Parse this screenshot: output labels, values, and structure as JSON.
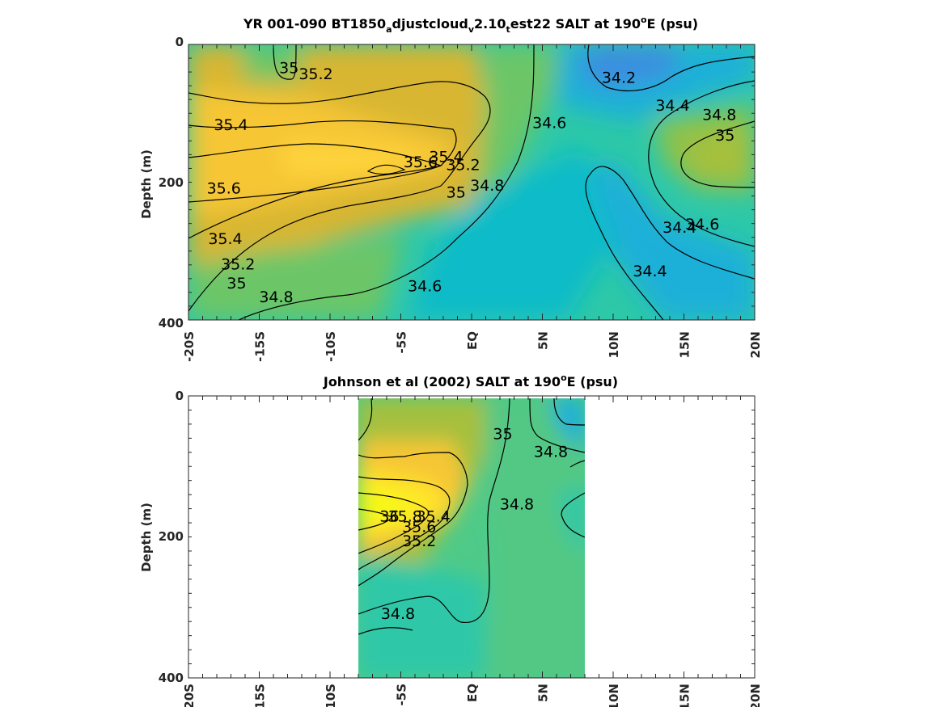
{
  "chart_data": [
    {
      "type": "heatmap",
      "title_parts": [
        "YR 001-090 BT1850",
        "a",
        "djustcloud",
        "v",
        "2.10",
        "t",
        "est22 SALT at 190",
        "o",
        "E (psu)"
      ],
      "ylabel": "Depth (m)",
      "ylim": [
        400,
        0
      ],
      "yticks": [
        "0",
        "200",
        "400"
      ],
      "xticks": [
        "-20S",
        "-15S",
        "-10S",
        "-5S",
        "EQ",
        "5N",
        "10N",
        "15N",
        "20N"
      ],
      "xlim": [
        -20,
        20
      ],
      "colormap": [
        "#3b8fe0",
        "#1fb0d8",
        "#08bcc8",
        "#2dc8a8",
        "#6cc668",
        "#a6c03c",
        "#d8b632",
        "#f6c634",
        "#ffe42a",
        "#f7f814"
      ],
      "color_range": [
        34.0,
        36.2
      ],
      "contour_labels": [
        {
          "text": "35",
          "x": -12.9,
          "y": 35
        },
        {
          "text": "35.2",
          "x": -11.0,
          "y": 44
        },
        {
          "text": "35.4",
          "x": -17.0,
          "y": 118
        },
        {
          "text": "35.6",
          "x": -17.5,
          "y": 210
        },
        {
          "text": "35.4",
          "x": -17.4,
          "y": 283
        },
        {
          "text": "35.2",
          "x": -16.5,
          "y": 320
        },
        {
          "text": "35",
          "x": -16.6,
          "y": 348
        },
        {
          "text": "34.8",
          "x": -13.8,
          "y": 368
        },
        {
          "text": "35.6",
          "x": -3.6,
          "y": 172
        },
        {
          "text": "35.4",
          "x": -1.8,
          "y": 164
        },
        {
          "text": "35.2",
          "x": -0.6,
          "y": 176
        },
        {
          "text": "35",
          "x": -1.1,
          "y": 216
        },
        {
          "text": "34.8",
          "x": 1.1,
          "y": 206
        },
        {
          "text": "34.6",
          "x": -3.3,
          "y": 352
        },
        {
          "text": "34.6",
          "x": 5.5,
          "y": 115
        },
        {
          "text": "34.2",
          "x": 10.4,
          "y": 49
        },
        {
          "text": "34.4",
          "x": 14.2,
          "y": 90
        },
        {
          "text": "34.8",
          "x": 17.5,
          "y": 103
        },
        {
          "text": "35",
          "x": 17.9,
          "y": 133
        },
        {
          "text": "34.6",
          "x": 16.3,
          "y": 262
        },
        {
          "text": "34.4",
          "x": 14.7,
          "y": 267
        },
        {
          "text": "34.4",
          "x": 12.6,
          "y": 330
        }
      ],
      "contours": [
        {
          "level": 35.2,
          "points": [
            [
              -20,
              70
            ],
            [
              -16,
              90
            ],
            [
              -12,
              80
            ],
            [
              -9,
              65
            ],
            [
              -6,
              58
            ],
            [
              -4,
              70
            ],
            [
              -2.5,
              95
            ],
            [
              -1.7,
              140
            ],
            [
              -1.6,
              200
            ],
            [
              -3,
              225
            ],
            [
              -8,
              242
            ],
            [
              -14,
              258
            ],
            [
              -20,
              330
            ]
          ]
        },
        {
          "level": 34.6,
          "points": [
            [
              6,
              0
            ],
            [
              5.7,
              45
            ],
            [
              5.6,
              100
            ],
            [
              5,
              125
            ],
            [
              3,
              172
            ],
            [
              1.4,
              230
            ],
            [
              -0.7,
              283
            ],
            [
              -2,
              338
            ],
            [
              -3,
              360
            ],
            [
              -5,
              372
            ],
            [
              -6,
              395
            ]
          ]
        },
        {
          "level": 34.4,
          "points": [
            [
              9,
              0
            ],
            [
              8.6,
              45
            ],
            [
              9.3,
              88
            ],
            [
              11.3,
              103
            ],
            [
              13.3,
              88
            ],
            [
              15.5,
              65
            ],
            [
              17.5,
              53
            ],
            [
              20,
              45
            ]
          ]
        },
        {
          "level": 34.4,
          "points": [
            [
              20,
              350
            ],
            [
              18,
              328
            ],
            [
              16,
              318
            ],
            [
              14,
              295
            ],
            [
              12.5,
              262
            ],
            [
              10.8,
              220
            ],
            [
              9.3,
              182
            ],
            [
              8.8,
              150
            ],
            [
              10,
              138
            ],
            [
              11.3,
              150
            ],
            [
              12.5,
              180
            ],
            [
              13.8,
              225
            ],
            [
              15.5,
              275
            ],
            [
              16.3,
              287
            ]
          ]
        }
      ]
    },
    {
      "type": "heatmap",
      "title_parts": [
        "Johnson et al (2002) SALT at 190",
        "o",
        "E (psu)"
      ],
      "ylabel": "Depth (m)",
      "ylim": [
        400,
        0
      ],
      "yticks": [
        "0",
        "200",
        "400"
      ],
      "xticks": [
        "20S",
        "15S",
        "10S",
        "-5S",
        "EQ",
        "5N",
        "10N",
        "15N",
        "20N"
      ],
      "xlim": [
        -20,
        20
      ],
      "data_extent_x": [
        -8,
        8
      ],
      "colormap": [
        "#3b8fe0",
        "#1fb0d8",
        "#08bcc8",
        "#2dc8a8",
        "#6cc668",
        "#a6c03c",
        "#d8b632",
        "#f6c634",
        "#ffe42a",
        "#f7f814"
      ],
      "color_range": [
        34.0,
        36.2
      ],
      "contour_labels": [
        {
          "text": "35",
          "x": 2.2,
          "y": 55
        },
        {
          "text": "34.8",
          "x": 5.6,
          "y": 80
        },
        {
          "text": "34.8",
          "x": 3.2,
          "y": 155
        },
        {
          "text": "36",
          "x": -5.8,
          "y": 172
        },
        {
          "text": "35.8",
          "x": -4.7,
          "y": 172
        },
        {
          "text": "35.6",
          "x": -3.7,
          "y": 187
        },
        {
          "text": "35.4",
          "x": -2.7,
          "y": 172
        },
        {
          "text": "35.2",
          "x": -3.7,
          "y": 207
        },
        {
          "text": "34.8",
          "x": -5.2,
          "y": 310
        }
      ],
      "contours": [
        {
          "level": 35.4,
          "points": [
            [
              -8,
              75
            ],
            [
              -6,
              90
            ],
            [
              -5,
              85
            ],
            [
              -3,
              85
            ],
            [
              -2,
              110
            ],
            [
              -1.8,
              140
            ],
            [
              -2.3,
              160
            ],
            [
              -4,
              195
            ],
            [
              -5.8,
              230
            ],
            [
              -8,
              245
            ]
          ]
        },
        {
          "level": 35.6,
          "points": [
            [
              -8,
              110
            ],
            [
              -6,
              118
            ],
            [
              -4.5,
              115
            ],
            [
              -3,
              120
            ],
            [
              -2.8,
              140
            ],
            [
              -3.4,
              170
            ],
            [
              -5.5,
              200
            ],
            [
              -8,
              215
            ]
          ]
        },
        {
          "level": 35.8,
          "points": [
            [
              -8,
              135
            ],
            [
              -5.5,
              145
            ],
            [
              -4,
              140
            ],
            [
              -3.5,
              150
            ],
            [
              -4,
              170
            ],
            [
              -6,
              185
            ],
            [
              -8,
              195
            ]
          ]
        },
        {
          "level": 35.0,
          "points": [
            [
              -7,
              0
            ],
            [
              -7.2,
              20
            ],
            [
              -7.8,
              40
            ],
            [
              -8,
              60
            ]
          ]
        },
        {
          "level": 35.0,
          "points": [
            [
              -8,
              262
            ],
            [
              -6.5,
              240
            ],
            [
              -5,
              233
            ],
            [
              -3.4,
              248
            ],
            [
              -2.6,
              300
            ],
            [
              -1.8,
              318
            ],
            [
              -0.8,
              325
            ],
            [
              0.5,
              320
            ],
            [
              1,
              280
            ],
            [
              1,
              240
            ],
            [
              0.8,
              200
            ],
            [
              0.5,
              150
            ],
            [
              1,
              100
            ],
            [
              1.8,
              80
            ],
            [
              2.5,
              55
            ],
            [
              2.6,
              0
            ]
          ]
        },
        {
          "level": 34.8,
          "points": [
            [
              -8,
              330
            ],
            [
              -5.5,
              330
            ]
          ]
        },
        {
          "level": 34.8,
          "points": [
            [
              4,
              0
            ],
            [
              4,
              30
            ],
            [
              5,
              45
            ],
            [
              7,
              55
            ],
            [
              8,
              60
            ]
          ]
        },
        {
          "level": 34.8,
          "points": [
            [
              8,
              70
            ],
            [
              7.5,
              75
            ]
          ]
        },
        {
          "level": 34.8,
          "points": [
            [
              6,
              0
            ],
            [
              6,
              20
            ],
            [
              7,
              25
            ],
            [
              8,
              25
            ]
          ]
        },
        {
          "level": 34.8,
          "points": [
            [
              8,
              130
            ],
            [
              7,
              140
            ],
            [
              6.2,
              145
            ],
            [
              6.5,
              160
            ],
            [
              7.5,
              175
            ],
            [
              8,
              180
            ]
          ]
        }
      ]
    }
  ]
}
